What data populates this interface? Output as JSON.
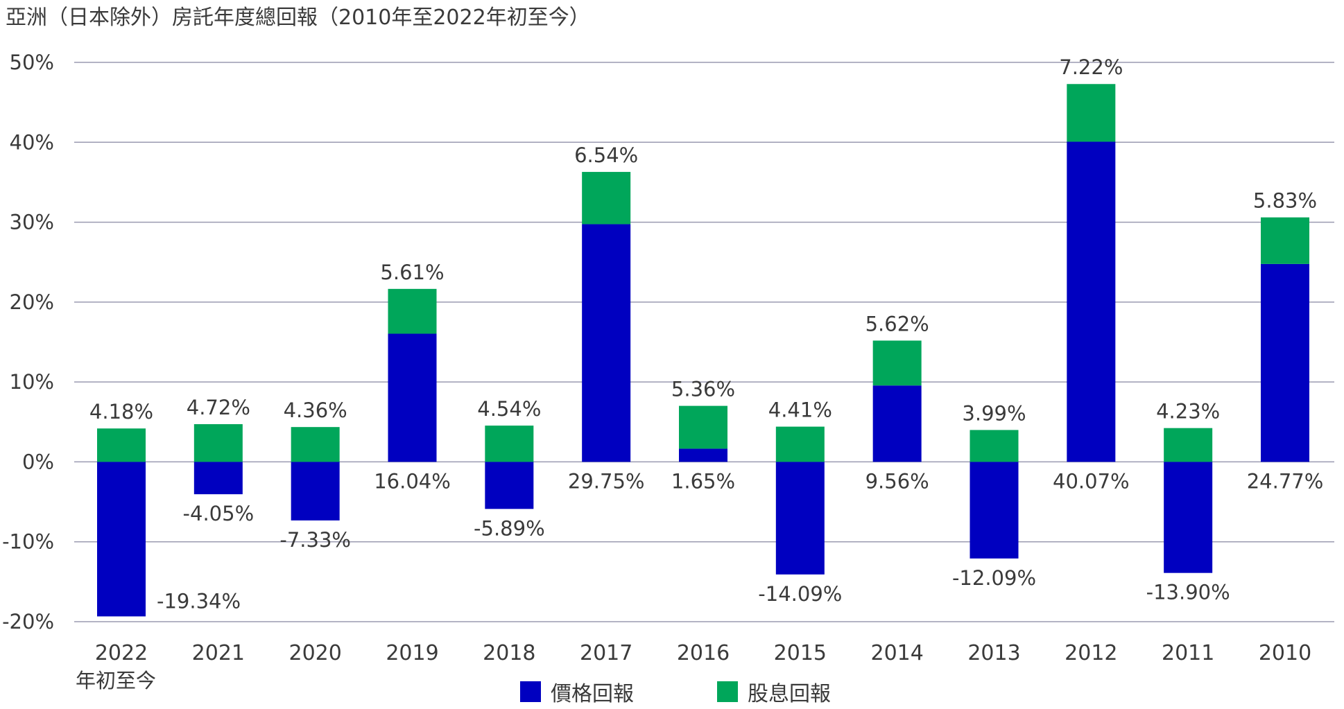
{
  "chart_data": {
    "type": "bar",
    "stacked": true,
    "title": "亞洲（日本除外）房託年度總回報（2010年至2022年初至今）",
    "categories": [
      "2022",
      "2021",
      "2020",
      "2019",
      "2018",
      "2017",
      "2016",
      "2015",
      "2014",
      "2013",
      "2012",
      "2011",
      "2010"
    ],
    "category_sublabels": [
      "年初至今",
      "",
      "",
      "",
      "",
      "",
      "",
      "",
      "",
      "",
      "",
      "",
      ""
    ],
    "series": [
      {
        "name": "價格回報",
        "color": "#0000c0",
        "values": [
          -19.34,
          -4.05,
          -7.33,
          16.04,
          -5.89,
          29.75,
          1.65,
          -14.09,
          9.56,
          -12.09,
          40.07,
          -13.9,
          24.77
        ],
        "labels": [
          "-19.34%",
          "-4.05%",
          "-7.33%",
          "16.04%",
          "-5.89%",
          "29.75%",
          "1.65%",
          "-14.09%",
          "9.56%",
          "-12.09%",
          "40.07%",
          "-13.90%",
          "24.77%"
        ]
      },
      {
        "name": "股息回報",
        "color": "#00a65a",
        "values": [
          4.18,
          4.72,
          4.36,
          5.61,
          4.54,
          6.54,
          5.36,
          4.41,
          5.62,
          3.99,
          7.22,
          4.23,
          5.83
        ],
        "labels": [
          "4.18%",
          "4.72%",
          "4.36%",
          "5.61%",
          "4.54%",
          "6.54%",
          "5.36%",
          "4.41%",
          "5.62%",
          "3.99%",
          "7.22%",
          "4.23%",
          "5.83%"
        ]
      }
    ],
    "ylim": [
      -20,
      50
    ],
    "yticks": [
      -20,
      -10,
      0,
      10,
      20,
      30,
      40,
      50
    ],
    "ytick_labels": [
      "-20%",
      "-10%",
      "0%",
      "10%",
      "20%",
      "30%",
      "40%",
      "50%"
    ],
    "xlabel": "",
    "ylabel": "",
    "grid": true,
    "legend_position": "bottom-center"
  }
}
